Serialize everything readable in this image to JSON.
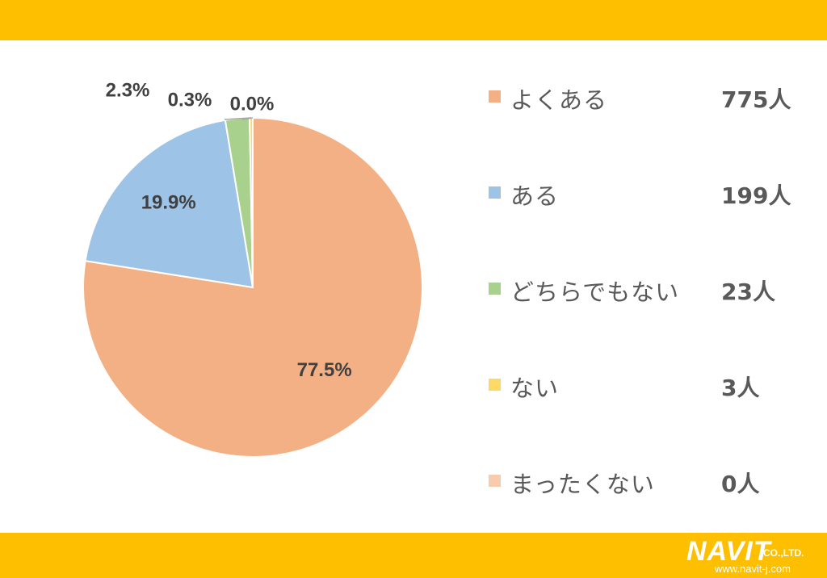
{
  "chart_data": {
    "type": "pie",
    "categories": [
      "よくある",
      "ある",
      "どちらでもない",
      "ない",
      "まったくない"
    ],
    "values": [
      775,
      199,
      23,
      3,
      0
    ],
    "counts": [
      "775人",
      "199人",
      "23人",
      "3人",
      "0人"
    ],
    "percent_labels": [
      "77.5%",
      "19.9%",
      "2.3%",
      "0.3%",
      "0.0%"
    ],
    "colors": [
      "#F3B084",
      "#9DC3E6",
      "#A9D18E",
      "#FFD966",
      "#F8CBAD"
    ],
    "legend_position": "right"
  },
  "logo": {
    "name": "NAVIT",
    "suffix": "CO.,LTD.",
    "url": "www.navit-j.com"
  }
}
